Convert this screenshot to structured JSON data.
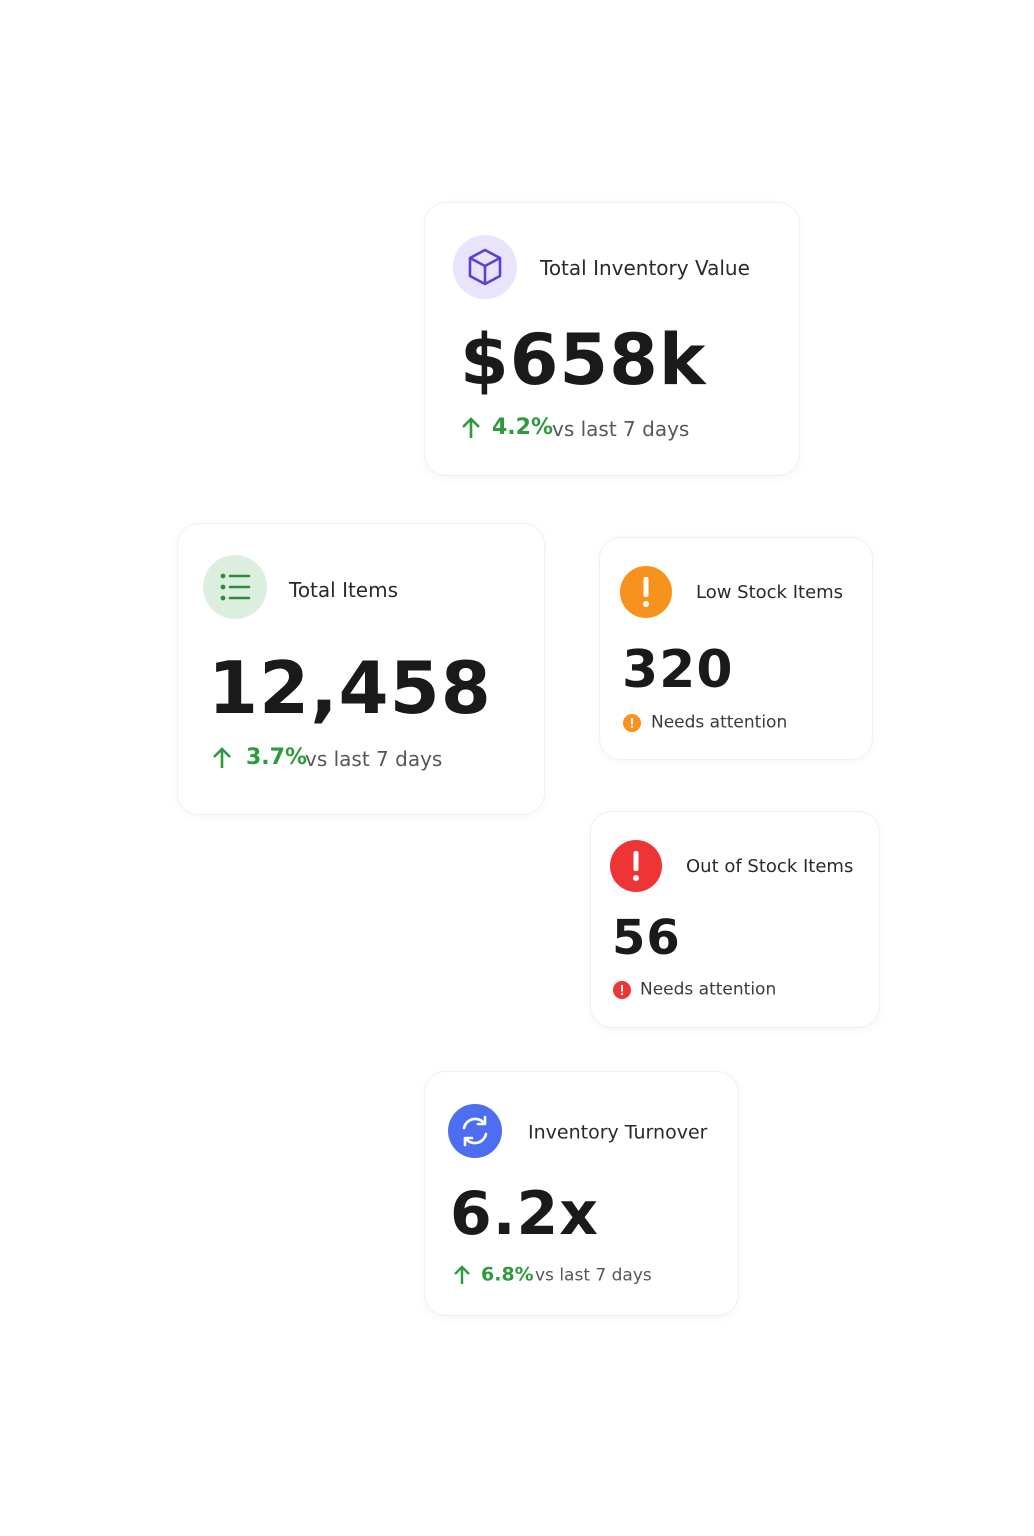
{
  "cards": [
    {
      "title": "Total Inventory Value",
      "value": "$658k",
      "change": "4.2%",
      "change_suffix": "vs last 7 days"
    },
    {
      "title": "Total Items",
      "value": "12,458",
      "change": "3.7%",
      "change_suffix": "vs last 7 days"
    },
    {
      "title": "Low Stock Items",
      "value": "320",
      "note": "Needs attention"
    },
    {
      "title": "Out of Stock Items",
      "value": "56",
      "note": "Needs attention"
    },
    {
      "title": "Inventory Turnover",
      "value": "6.2x",
      "change": "6.8%",
      "change_suffix": "vs last 7 days"
    }
  ]
}
